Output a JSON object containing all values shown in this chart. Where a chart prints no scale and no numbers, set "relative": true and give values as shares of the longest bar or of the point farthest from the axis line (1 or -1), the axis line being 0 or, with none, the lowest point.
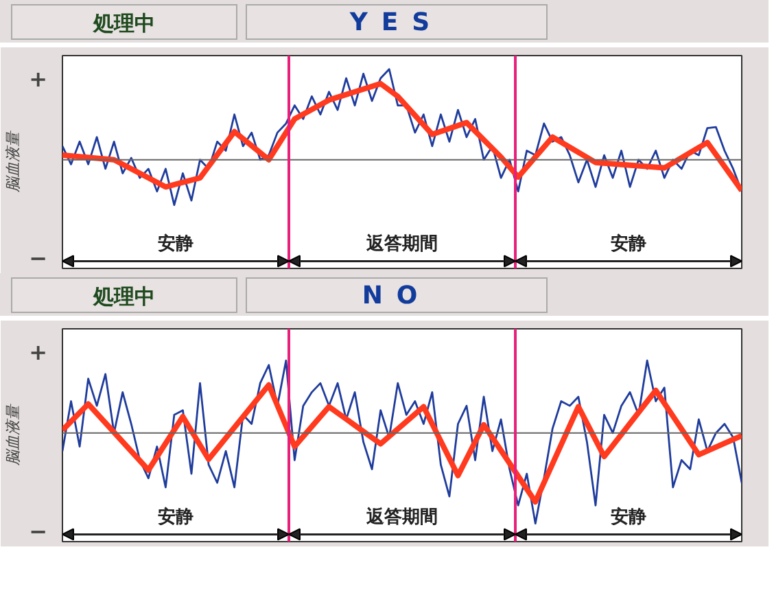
{
  "chart_data": [
    {
      "type": "line",
      "title": "処理中",
      "subtitle": "YES",
      "ylabel": "脳血液量",
      "relative": true,
      "grid": false,
      "annotations": [
        "+",
        "−",
        "安静",
        "返答期間",
        "安静"
      ],
      "categories": [
        null,
        null,
        null,
        null,
        null,
        null,
        null,
        null,
        null,
        null,
        null,
        null,
        null,
        null,
        null,
        null,
        null,
        null,
        null,
        null,
        null,
        null,
        null,
        null,
        null,
        null,
        null,
        null,
        null,
        null,
        null,
        null,
        null,
        null,
        null,
        null,
        null,
        null,
        null,
        null,
        null,
        null,
        null,
        null,
        null,
        null,
        null,
        null,
        null,
        null,
        null,
        null,
        null,
        null,
        null,
        null,
        null,
        null,
        null,
        null,
        null,
        null,
        null,
        null,
        null,
        null,
        null,
        null,
        null,
        null,
        null,
        null,
        null,
        null,
        null,
        null,
        null,
        null,
        null,
        null
      ],
      "series": [
        {
          "color": "#1f3c9c",
          "values": [
            0.15,
            -0.05,
            0.2,
            -0.05,
            0.25,
            -0.1,
            0.2,
            -0.15,
            0.02,
            -0.2,
            -0.1,
            -0.35,
            -0.1,
            -0.5,
            -0.15,
            -0.45,
            0.0,
            -0.1,
            0.2,
            0.1,
            0.5,
            0.15,
            0.3,
            0.0,
            0.05,
            0.3,
            0.4,
            0.6,
            0.45,
            0.7,
            0.5,
            0.75,
            0.55,
            0.9,
            0.6,
            0.95,
            0.65,
            0.9,
            1.0,
            0.6,
            0.6,
            0.3,
            0.5,
            0.15,
            0.5,
            0.2,
            0.55,
            0.25,
            0.45,
            0.0,
            0.15,
            -0.2,
            0.0,
            -0.35,
            0.1,
            0.05,
            0.4,
            0.2,
            0.25,
            0.05,
            -0.25,
            0.0,
            -0.3,
            0.05,
            -0.2,
            0.1,
            -0.3,
            0.0,
            -0.1,
            0.1,
            -0.2,
            0.0,
            -0.1,
            0.1,
            0.05,
            0.35,
            0.36,
            0.1,
            -0.1,
            -0.35
          ]
        },
        {
          "color": "#ff3a1e",
          "values": [
            0.05,
            null,
            null,
            null,
            null,
            null,
            0.0,
            null,
            null,
            null,
            null,
            null,
            -0.3,
            null,
            null,
            null,
            -0.2,
            null,
            null,
            null,
            0.31,
            null,
            null,
            null,
            0.0,
            null,
            null,
            0.45,
            null,
            null,
            null,
            0.66,
            null,
            null,
            null,
            null,
            null,
            0.84,
            null,
            0.7,
            null,
            null,
            null,
            0.28,
            null,
            null,
            null,
            0.41,
            null,
            null,
            null,
            0.03,
            null,
            -0.19,
            null,
            null,
            null,
            0.25,
            null,
            null,
            null,
            null,
            -0.03,
            null,
            null,
            null,
            null,
            null,
            null,
            null,
            -0.09,
            null,
            null,
            null,
            null,
            0.19,
            null,
            null,
            null,
            -0.34
          ]
        }
      ]
    },
    {
      "type": "line",
      "title": "処理中",
      "subtitle": "NO",
      "ylabel": "脳血液量",
      "relative": true,
      "grid": false,
      "annotations": [
        "+",
        "−",
        "安静",
        "返答期間",
        "安静"
      ],
      "categories": [
        null,
        null,
        null,
        null,
        null,
        null,
        null,
        null,
        null,
        null,
        null,
        null,
        null,
        null,
        null,
        null,
        null,
        null,
        null,
        null,
        null,
        null,
        null,
        null,
        null,
        null,
        null,
        null,
        null,
        null,
        null,
        null,
        null,
        null,
        null,
        null,
        null,
        null,
        null,
        null,
        null,
        null,
        null,
        null,
        null,
        null,
        null,
        null,
        null,
        null,
        null,
        null,
        null,
        null,
        null,
        null,
        null,
        null,
        null,
        null,
        null,
        null,
        null,
        null,
        null,
        null,
        null,
        null,
        null,
        null,
        null,
        null,
        null,
        null,
        null,
        null,
        null,
        null,
        null,
        null
      ],
      "series": [
        {
          "color": "#1f3c9c",
          "values": [
            -0.2,
            0.35,
            -0.15,
            0.6,
            0.3,
            0.65,
            0.0,
            0.45,
            0.1,
            -0.3,
            -0.5,
            -0.15,
            -0.6,
            0.2,
            0.25,
            -0.45,
            0.55,
            -0.35,
            -0.55,
            -0.2,
            -0.6,
            0.2,
            0.1,
            0.55,
            0.75,
            0.3,
            0.8,
            -0.3,
            0.3,
            0.45,
            0.55,
            0.3,
            0.55,
            0.15,
            0.45,
            -0.1,
            -0.4,
            0.25,
            -0.05,
            0.55,
            0.2,
            0.35,
            0.1,
            0.45,
            -0.35,
            -0.7,
            0.1,
            0.3,
            -0.3,
            0.4,
            -0.2,
            0.15,
            -0.4,
            -0.8,
            -0.45,
            -1.0,
            -0.5,
            0.05,
            0.35,
            0.3,
            0.4,
            -0.1,
            -0.8,
            0.2,
            0.0,
            0.3,
            0.45,
            0.2,
            0.8,
            0.35,
            0.5,
            -0.6,
            -0.3,
            -0.4,
            0.15,
            -0.2,
            0.0,
            0.1,
            -0.05,
            -0.55
          ]
        },
        {
          "color": "#ff3a1e",
          "values": [
            0.03,
            null,
            null,
            0.32,
            null,
            null,
            null,
            null,
            null,
            null,
            -0.41,
            null,
            null,
            null,
            0.18,
            null,
            null,
            -0.29,
            null,
            null,
            null,
            null,
            null,
            null,
            0.53,
            null,
            null,
            -0.15,
            null,
            null,
            null,
            0.29,
            null,
            null,
            null,
            null,
            null,
            -0.12,
            null,
            null,
            null,
            null,
            0.29,
            null,
            null,
            null,
            -0.47,
            null,
            null,
            0.09,
            null,
            null,
            null,
            null,
            null,
            -0.76,
            null,
            null,
            null,
            null,
            0.29,
            null,
            null,
            -0.26,
            null,
            null,
            null,
            null,
            null,
            0.47,
            null,
            null,
            null,
            null,
            -0.24,
            null,
            null,
            null,
            null,
            -0.03
          ]
        }
      ]
    }
  ]
}
